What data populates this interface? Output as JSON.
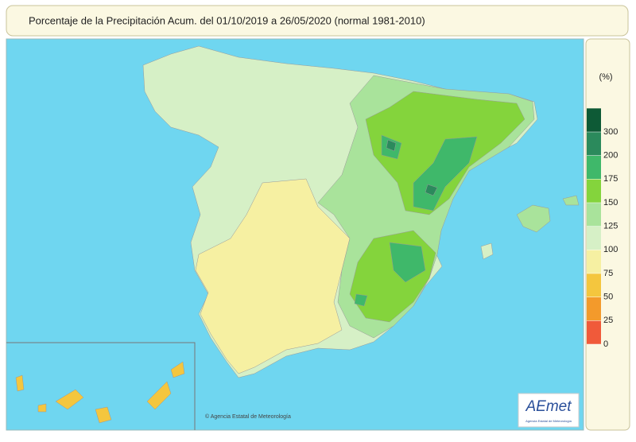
{
  "header": {
    "title": "Porcentaje de la Precipitación Acum. del 01/10/2019 a  26/05/2020  (normal 1981-2010)"
  },
  "legend": {
    "unit": "(%)",
    "ticks": [
      0,
      25,
      50,
      75,
      100,
      125,
      150,
      175,
      200,
      300
    ],
    "colors": [
      "#f05a3a",
      "#f39a2b",
      "#f4c63e",
      "#f6f0a2",
      "#d6f0c6",
      "#a9e39b",
      "#84d43c",
      "#3fb86a",
      "#2b8a5c",
      "#0e5a36"
    ]
  },
  "map": {
    "credit": "© Agencia Estatal de Meteorología"
  },
  "logo": {
    "name": "AEmet",
    "subtitle": "Agencia Estatal de Meteorología"
  }
}
